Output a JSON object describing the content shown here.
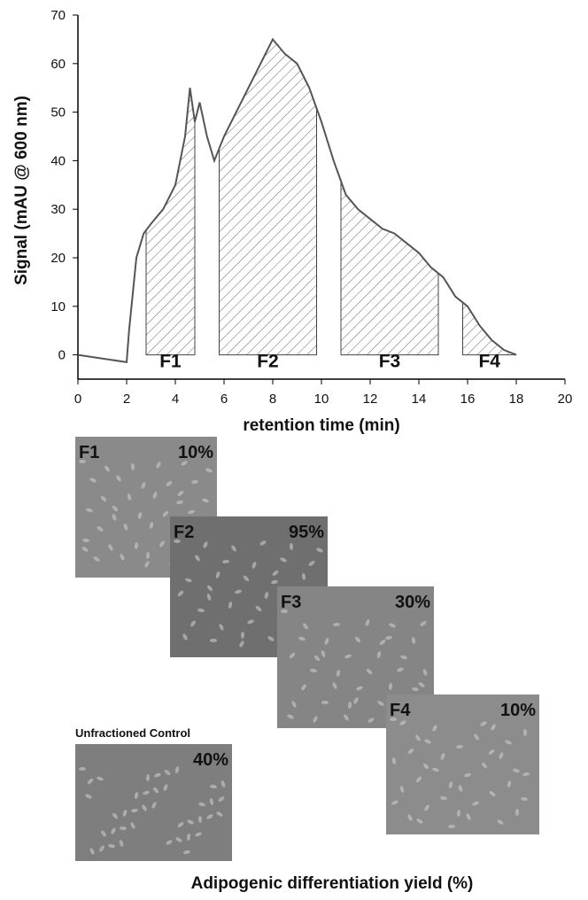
{
  "chart_data": {
    "type": "line",
    "xlabel": "retention time (min)",
    "ylabel": "Signal (mAU @ 600 nm)",
    "x": [
      0,
      2,
      2.1,
      2.4,
      2.7,
      3,
      3.5,
      4,
      4.4,
      4.6,
      4.8,
      5,
      5.3,
      5.6,
      6,
      6.5,
      7,
      7.5,
      8,
      8.5,
      9,
      9.5,
      10,
      10.5,
      11,
      11.5,
      12,
      12.5,
      13,
      13.5,
      14,
      14.5,
      15,
      15.5,
      16,
      16.5,
      17,
      17.5,
      18
    ],
    "series": [
      {
        "color": "#555555",
        "values": [
          0,
          -1.5,
          5,
          20,
          25,
          27,
          30,
          35,
          45,
          55,
          48,
          52,
          45,
          40,
          45,
          50,
          55,
          60,
          65,
          62,
          60,
          55,
          48,
          40,
          33,
          30,
          28,
          26,
          25,
          23,
          21,
          18,
          16,
          12,
          10,
          6,
          3,
          1,
          0
        ]
      }
    ],
    "fractions": [
      {
        "label": "F1",
        "start": 2.8,
        "end": 4.8
      },
      {
        "label": "F2",
        "start": 5.8,
        "end": 9.8
      },
      {
        "label": "F3",
        "start": 10.8,
        "end": 14.8
      },
      {
        "label": "F4",
        "start": 15.8,
        "end": 18
      }
    ],
    "xlim": [
      0,
      20
    ],
    "xticks": [
      0,
      2,
      4,
      6,
      8,
      10,
      12,
      14,
      16,
      18,
      20
    ],
    "ylim": [
      -5,
      70
    ],
    "yticks": [
      0,
      10,
      20,
      30,
      40,
      50,
      60,
      70
    ]
  },
  "panel": {
    "caption": "Adipogenic differentiation yield (%)",
    "images": [
      {
        "label": "F1",
        "yield": "10%"
      },
      {
        "label": "F2",
        "yield": "95%"
      },
      {
        "label": "F3",
        "yield": "30%"
      },
      {
        "label": "F4",
        "yield": "10%"
      },
      {
        "label": "Unfractioned Control",
        "yield": "40%"
      }
    ]
  }
}
